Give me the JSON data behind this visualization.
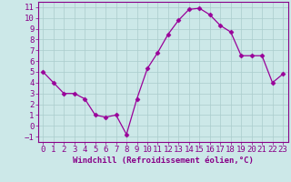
{
  "xlabel": "Windchill (Refroidissement éolien,°C)",
  "x": [
    0,
    1,
    2,
    3,
    4,
    5,
    6,
    7,
    8,
    9,
    10,
    11,
    12,
    13,
    14,
    15,
    16,
    17,
    18,
    19,
    20,
    21,
    22,
    23
  ],
  "y": [
    5.0,
    4.0,
    3.0,
    3.0,
    2.5,
    1.0,
    0.8,
    1.0,
    -0.8,
    2.5,
    5.3,
    6.8,
    8.5,
    9.8,
    10.8,
    10.9,
    10.3,
    9.3,
    8.7,
    6.5,
    6.5,
    6.5,
    4.0,
    4.8
  ],
  "line_color": "#990099",
  "marker": "D",
  "marker_size": 2.5,
  "bg_color": "#cce8e8",
  "grid_color": "#aacccc",
  "xlim": [
    -0.5,
    23.5
  ],
  "ylim": [
    -1.5,
    11.5
  ],
  "yticks": [
    -1,
    0,
    1,
    2,
    3,
    4,
    5,
    6,
    7,
    8,
    9,
    10,
    11
  ],
  "xticks": [
    0,
    1,
    2,
    3,
    4,
    5,
    6,
    7,
    8,
    9,
    10,
    11,
    12,
    13,
    14,
    15,
    16,
    17,
    18,
    19,
    20,
    21,
    22,
    23
  ],
  "tick_color": "#880088",
  "axis_label_color": "#880088",
  "label_fontsize": 6.5,
  "tick_fontsize": 6.5
}
